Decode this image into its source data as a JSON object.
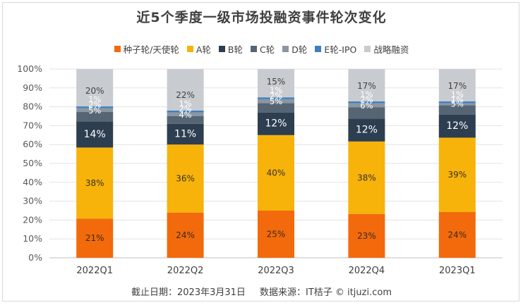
{
  "title": "近5个季度一级市场投融资事件轮次变化",
  "legend": [
    {
      "label": "种子轮/天使轮",
      "color": "#f26a0c"
    },
    {
      "label": "A轮",
      "color": "#f7b30a"
    },
    {
      "label": "B轮",
      "color": "#2d3e50"
    },
    {
      "label": "C轮",
      "color": "#566574"
    },
    {
      "label": "D轮",
      "color": "#8c96a0"
    },
    {
      "label": "E轮-IPO",
      "color": "#3f7fbf"
    },
    {
      "label": "战略融资",
      "color": "#c8ccd1"
    }
  ],
  "footer": {
    "date": "截止日期：2023年3月31日",
    "source": "数据来源：IT桔子 © itjuzi.com"
  },
  "chart_data": {
    "type": "bar",
    "stacked": true,
    "categories": [
      "2022Q1",
      "2022Q2",
      "2022Q3",
      "2022Q4",
      "2023Q1"
    ],
    "ylim": [
      0,
      100
    ],
    "yticks": [
      "0%",
      "10%",
      "20%",
      "30%",
      "40%",
      "50%",
      "60%",
      "70%",
      "80%",
      "90%",
      "100%"
    ],
    "grid": true,
    "legend_position": "top",
    "series": [
      {
        "name": "种子轮/天使轮",
        "values": [
          21,
          24,
          25,
          23,
          24
        ],
        "labels": [
          "21%",
          "24%",
          "25%",
          "23%",
          "24%"
        ]
      },
      {
        "name": "A轮",
        "values": [
          38,
          36,
          40,
          38,
          39
        ],
        "labels": [
          "38%",
          "36%",
          "40%",
          "38%",
          "39%"
        ]
      },
      {
        "name": "B轮",
        "values": [
          14,
          11,
          12,
          12,
          12
        ],
        "labels": [
          "14%",
          "11%",
          "12%",
          "12%",
          "12%"
        ]
      },
      {
        "name": "C轮",
        "values": [
          5,
          4,
          5,
          6,
          5
        ],
        "labels": [
          "5%",
          "4%",
          "5%",
          "6%",
          "5%"
        ]
      },
      {
        "name": "D轮",
        "values": [
          2,
          2,
          2,
          2,
          1
        ],
        "labels": [
          "2%",
          "2%",
          "2%",
          "2%",
          "1%"
        ]
      },
      {
        "name": "E轮-IPO",
        "values": [
          1,
          1,
          1,
          1,
          1
        ],
        "labels": [
          "1%",
          "1%",
          "1%",
          "1%",
          "1%"
        ]
      },
      {
        "name": "战略融资",
        "values": [
          20,
          22,
          15,
          17,
          17
        ],
        "labels": [
          "20%",
          "22%",
          "15%",
          "17%",
          "17%"
        ]
      }
    ]
  }
}
